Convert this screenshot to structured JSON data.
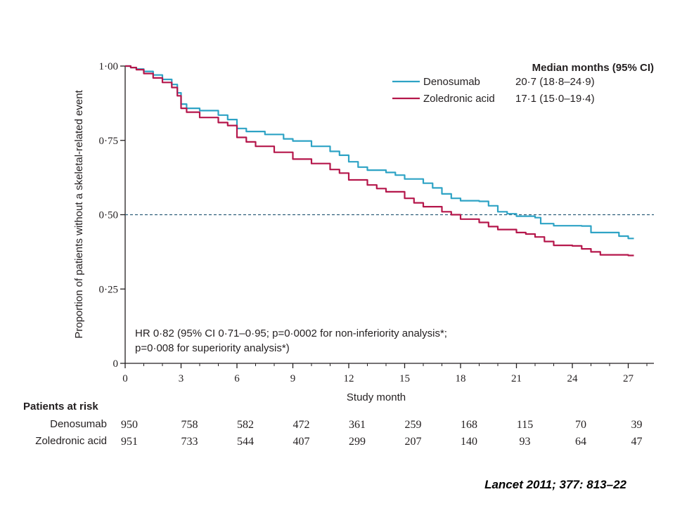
{
  "chart_data": {
    "type": "line",
    "title": "",
    "xlabel": "Study month",
    "ylabel": "Proportion of patients without a skeletal-related event",
    "xlim": [
      0,
      28
    ],
    "ylim": [
      0,
      1
    ],
    "x_ticks": [
      0,
      3,
      6,
      9,
      12,
      15,
      18,
      21,
      24,
      27
    ],
    "x_tick_labels": [
      "0",
      "3",
      "6",
      "9",
      "12",
      "15",
      "18",
      "21",
      "24",
      "27"
    ],
    "y_ticks": [
      0,
      0.25,
      0.5,
      0.75,
      1.0
    ],
    "y_tick_labels": [
      "0",
      "0·25",
      "0·50",
      "0·75",
      "1·00"
    ],
    "reference_line": {
      "y": 0.5,
      "style": "dashed"
    },
    "legend": {
      "position": "top-right",
      "header": "Median months (95% CI)",
      "entries": [
        {
          "name": "Denosumab",
          "median": "20·7 (18·8–24·9)"
        },
        {
          "name": "Zoledronic acid",
          "median": "17·1 (15·0–19·4)"
        }
      ]
    },
    "series": [
      {
        "name": "Denosumab",
        "color": "#2ea3c5",
        "points": [
          [
            0,
            1.0
          ],
          [
            0.3,
            0.995
          ],
          [
            0.6,
            0.99
          ],
          [
            1,
            0.982
          ],
          [
            1.5,
            0.97
          ],
          [
            2,
            0.955
          ],
          [
            2.5,
            0.938
          ],
          [
            2.8,
            0.91
          ],
          [
            3.0,
            0.872
          ],
          [
            3.3,
            0.858
          ],
          [
            4,
            0.85
          ],
          [
            5,
            0.835
          ],
          [
            5.5,
            0.82
          ],
          [
            6,
            0.79
          ],
          [
            6.5,
            0.78
          ],
          [
            7.5,
            0.77
          ],
          [
            8.5,
            0.755
          ],
          [
            9,
            0.748
          ],
          [
            10,
            0.73
          ],
          [
            11,
            0.713
          ],
          [
            11.5,
            0.7
          ],
          [
            12,
            0.678
          ],
          [
            12.5,
            0.66
          ],
          [
            13,
            0.65
          ],
          [
            14,
            0.642
          ],
          [
            14.5,
            0.633
          ],
          [
            15,
            0.62
          ],
          [
            16,
            0.606
          ],
          [
            16.5,
            0.59
          ],
          [
            17,
            0.57
          ],
          [
            17.5,
            0.555
          ],
          [
            18,
            0.547
          ],
          [
            19,
            0.545
          ],
          [
            19.5,
            0.53
          ],
          [
            20,
            0.51
          ],
          [
            20.5,
            0.503
          ],
          [
            21,
            0.495
          ],
          [
            22,
            0.49
          ],
          [
            22.3,
            0.47
          ],
          [
            23,
            0.463
          ],
          [
            24.5,
            0.462
          ],
          [
            25,
            0.44
          ],
          [
            26,
            0.44
          ],
          [
            26.5,
            0.428
          ],
          [
            27,
            0.42
          ],
          [
            27.3,
            0.42
          ]
        ]
      },
      {
        "name": "Zoledronic acid",
        "color": "#b5174b",
        "points": [
          [
            0,
            1.0
          ],
          [
            0.3,
            0.995
          ],
          [
            0.6,
            0.988
          ],
          [
            1,
            0.975
          ],
          [
            1.5,
            0.96
          ],
          [
            2,
            0.945
          ],
          [
            2.5,
            0.928
          ],
          [
            2.8,
            0.9
          ],
          [
            3.0,
            0.858
          ],
          [
            3.3,
            0.845
          ],
          [
            4,
            0.827
          ],
          [
            5,
            0.81
          ],
          [
            5.5,
            0.8
          ],
          [
            6,
            0.76
          ],
          [
            6.5,
            0.745
          ],
          [
            7,
            0.73
          ],
          [
            8,
            0.71
          ],
          [
            9,
            0.687
          ],
          [
            10,
            0.672
          ],
          [
            11,
            0.652
          ],
          [
            11.5,
            0.64
          ],
          [
            12,
            0.617
          ],
          [
            13,
            0.6
          ],
          [
            13.5,
            0.588
          ],
          [
            14,
            0.577
          ],
          [
            15,
            0.555
          ],
          [
            15.5,
            0.54
          ],
          [
            16,
            0.527
          ],
          [
            17,
            0.51
          ],
          [
            17.5,
            0.5
          ],
          [
            18,
            0.485
          ],
          [
            19,
            0.474
          ],
          [
            19.5,
            0.46
          ],
          [
            20,
            0.45
          ],
          [
            21,
            0.44
          ],
          [
            21.5,
            0.435
          ],
          [
            22,
            0.425
          ],
          [
            22.5,
            0.41
          ],
          [
            23,
            0.397
          ],
          [
            24,
            0.395
          ],
          [
            24.5,
            0.385
          ],
          [
            25,
            0.375
          ],
          [
            25.5,
            0.365
          ],
          [
            27,
            0.363
          ],
          [
            27.3,
            0.363
          ]
        ]
      }
    ],
    "annotation": {
      "line1": "HR 0·82 (95% CI 0·71–0·95; p=0·0002 for non-inferiority analysis*;",
      "line2": "p=0·008 for superiority analysis*)"
    },
    "risk_table": {
      "title": "Patients at risk",
      "months": [
        0,
        3,
        6,
        9,
        12,
        15,
        18,
        21,
        24,
        27
      ],
      "rows": [
        {
          "label": "Denosumab",
          "values": [
            "950",
            "758",
            "582",
            "472",
            "361",
            "259",
            "168",
            "115",
            "70",
            "39"
          ]
        },
        {
          "label": "Zoledronic acid",
          "values": [
            "951",
            "733",
            "544",
            "407",
            "299",
            "207",
            "140",
            "93",
            "64",
            "47"
          ]
        }
      ]
    }
  },
  "citation": "Lancet 2011; 377: 813–22"
}
